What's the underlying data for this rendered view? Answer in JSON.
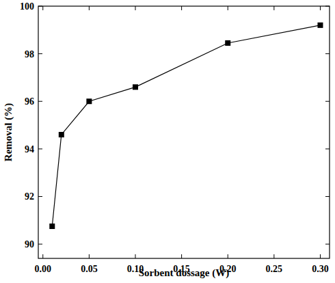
{
  "chart_data": {
    "type": "line",
    "x_label": "Sorbent dossage (W)",
    "y_label": "Removal (%)",
    "x": [
      0.01,
      0.02,
      0.05,
      0.1,
      0.2,
      0.3
    ],
    "values": [
      90.75,
      94.6,
      96.0,
      96.6,
      98.45,
      99.2
    ],
    "color": "#000000",
    "marker": "square",
    "line_style": "solid",
    "xlim": [
      -0.005,
      0.31
    ],
    "xticks": [
      {
        "value": 0,
        "label": "0.00"
      },
      {
        "value": 0.05,
        "label": "0.05"
      },
      {
        "value": 0.1,
        "label": "0.10"
      },
      {
        "value": 0.15,
        "label": "0.15"
      },
      {
        "value": 0.2,
        "label": "0.20"
      },
      {
        "value": 0.25,
        "label": "0.25"
      },
      {
        "value": 0.3,
        "label": "0.30"
      }
    ],
    "ylim": [
      89.4,
      100
    ],
    "yticks": [
      90,
      92,
      94,
      96,
      98,
      100
    ],
    "grid": false
  }
}
